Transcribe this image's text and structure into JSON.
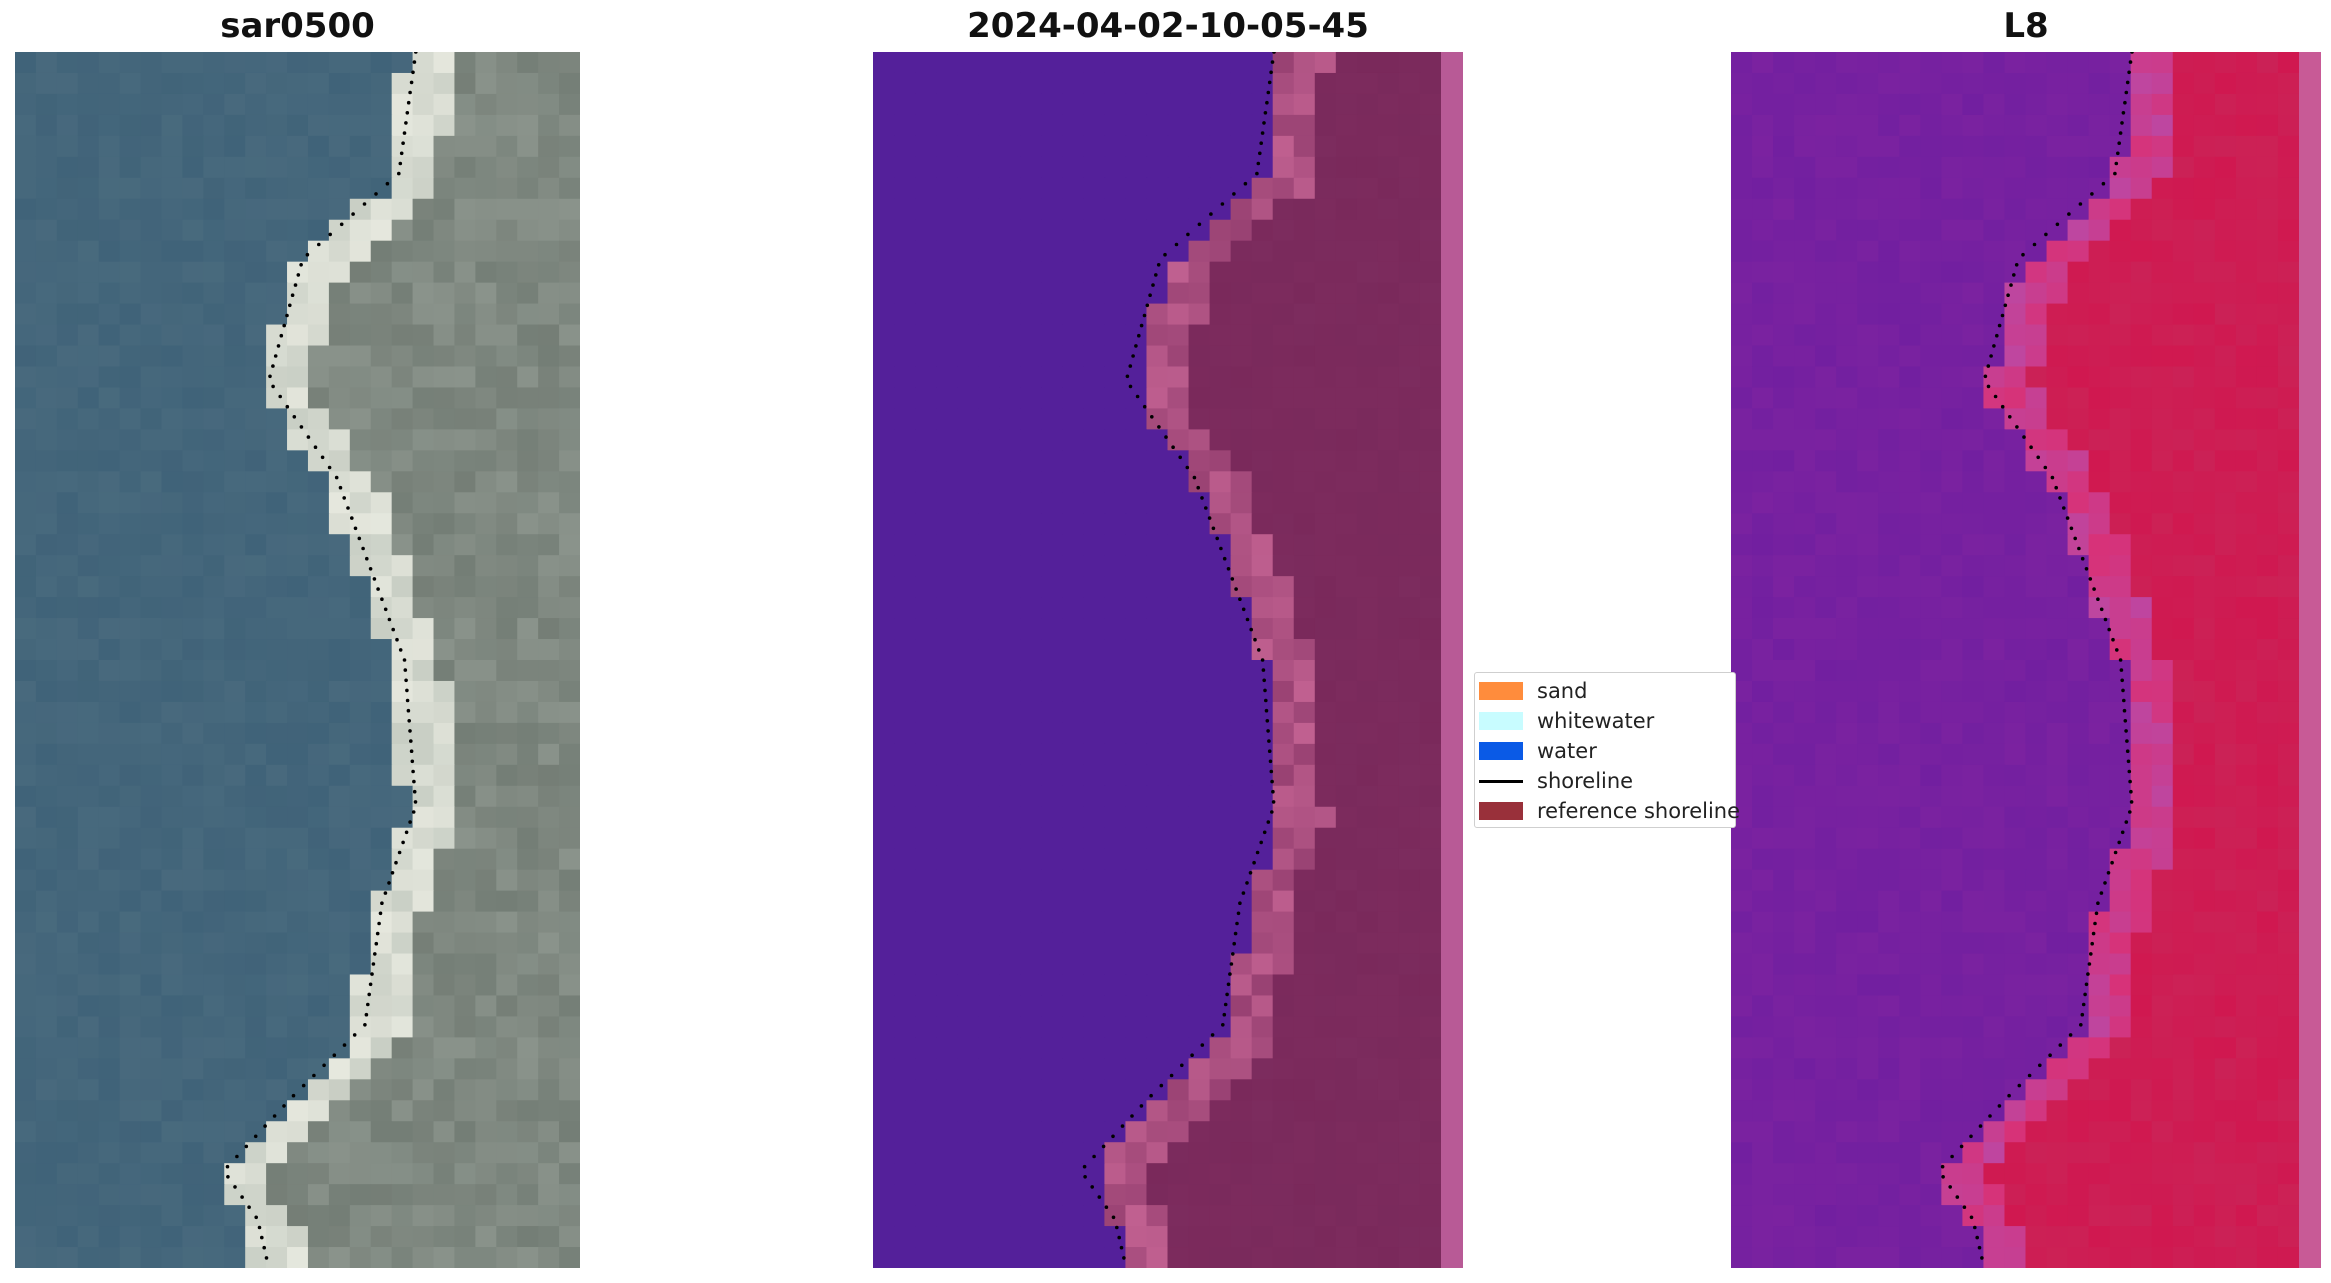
{
  "panels": [
    {
      "title": "sar0500",
      "palette": "rgb"
    },
    {
      "title": "2024-04-02-10-05-45",
      "palette": "classified"
    },
    {
      "title": "L8",
      "palette": "mndwi"
    }
  ],
  "legend": {
    "items": [
      {
        "label": "sand",
        "color": "#ff8c3c",
        "kind": "patch"
      },
      {
        "label": "whitewater",
        "color": "#c8fcff",
        "kind": "patch"
      },
      {
        "label": "water",
        "color": "#0a5ae6",
        "kind": "patch"
      },
      {
        "label": "shoreline",
        "color": "#000000",
        "kind": "line"
      },
      {
        "label": "reference shoreline",
        "color": "#99303a",
        "kind": "patch"
      }
    ]
  },
  "colors": {
    "water_blue": "#3f6278",
    "land_grey": "#8a938b",
    "class_water": "#54209a",
    "class_land": "#7d2c5e",
    "class_edge": "#c06090",
    "l8_water": "#7a22a0",
    "l8_land": "#d01850"
  }
}
